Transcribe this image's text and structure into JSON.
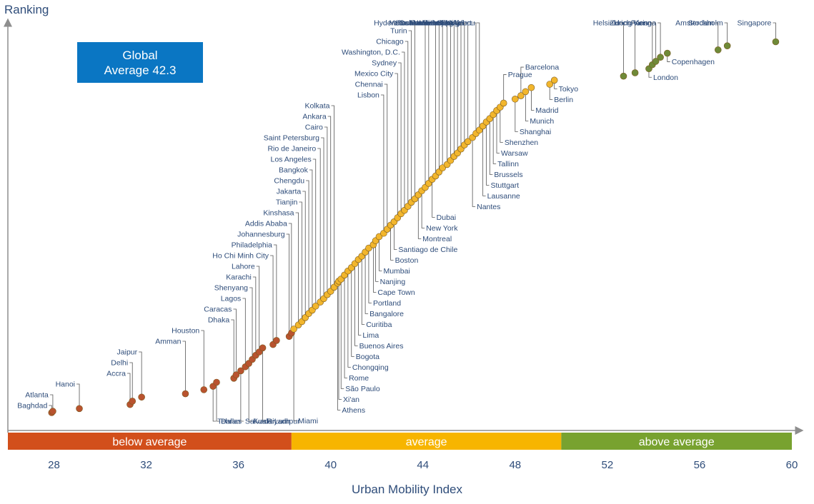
{
  "chart_data": {
    "type": "scatter",
    "title": "",
    "xlabel": "Urban Mobility Index",
    "ylabel": "Ranking",
    "xlim": [
      26,
      60
    ],
    "xticks": [
      28,
      32,
      36,
      40,
      44,
      48,
      52,
      56,
      60
    ],
    "annotation": {
      "line1": "Global",
      "line2": "Average 42.3"
    },
    "bands": [
      {
        "label": "below average",
        "from": 26,
        "to": 38.3,
        "color": "#d24f1b"
      },
      {
        "label": "average",
        "from": 38.3,
        "to": 50,
        "color": "#f7b500"
      },
      {
        "label": "above average",
        "from": 50,
        "to": 60,
        "color": "#78a22f"
      }
    ],
    "group_colors": {
      "below": "#b9532f",
      "average": "#f2b62d",
      "above": "#6f8a38"
    },
    "points": [
      {
        "city": "Baghdad",
        "x": 27.9,
        "y": 578,
        "group": "below"
      },
      {
        "city": "Atlanta",
        "x": 27.95,
        "y": 576,
        "group": "below"
      },
      {
        "city": "Hanoi",
        "x": 29.1,
        "y": 572,
        "group": "below"
      },
      {
        "city": "Accra",
        "x": 31.3,
        "y": 566,
        "group": "below"
      },
      {
        "city": "Delhi",
        "x": 31.4,
        "y": 561,
        "group": "below"
      },
      {
        "city": "Jaipur",
        "x": 31.8,
        "y": 555,
        "group": "below"
      },
      {
        "city": "Amman",
        "x": 33.7,
        "y": 550,
        "group": "below"
      },
      {
        "city": "Houston",
        "x": 34.5,
        "y": 544,
        "group": "below"
      },
      {
        "city": "Tehran",
        "x": 34.9,
        "y": 539,
        "group": "below"
      },
      {
        "city": "Dallas",
        "x": 35.05,
        "y": 533,
        "group": "below"
      },
      {
        "city": "Dhaka",
        "x": 35.8,
        "y": 527,
        "group": "below"
      },
      {
        "city": "Caracas",
        "x": 35.9,
        "y": 522,
        "group": "below"
      },
      {
        "city": "Salvador",
        "x": 36.1,
        "y": 516,
        "group": "below"
      },
      {
        "city": "Lagos",
        "x": 36.3,
        "y": 510,
        "group": "below"
      },
      {
        "city": "Kuala Lumpur",
        "x": 36.45,
        "y": 505,
        "group": "below"
      },
      {
        "city": "Shenyang",
        "x": 36.6,
        "y": 499,
        "group": "below"
      },
      {
        "city": "Karachi",
        "x": 36.75,
        "y": 493,
        "group": "below"
      },
      {
        "city": "Lahore",
        "x": 36.9,
        "y": 488,
        "group": "below"
      },
      {
        "city": "Riyadh",
        "x": 37.05,
        "y": 482,
        "group": "below"
      },
      {
        "city": "Ho Chi Minh City",
        "x": 37.5,
        "y": 477,
        "group": "below"
      },
      {
        "city": "Philadelphia",
        "x": 37.65,
        "y": 471,
        "group": "below"
      },
      {
        "city": "Johannesburg",
        "x": 38.2,
        "y": 465,
        "group": "below"
      },
      {
        "city": "Addis Ababa",
        "x": 38.3,
        "y": 460,
        "group": "below"
      },
      {
        "city": "Miami",
        "x": 38.4,
        "y": 454,
        "group": "average"
      },
      {
        "city": "Kinshasa",
        "x": 38.6,
        "y": 448,
        "group": "average"
      },
      {
        "city": "Tianjin",
        "x": 38.75,
        "y": 443,
        "group": "average"
      },
      {
        "city": "Jakarta",
        "x": 38.9,
        "y": 437,
        "group": "average"
      },
      {
        "city": "Chengdu",
        "x": 39.05,
        "y": 431,
        "group": "average"
      },
      {
        "city": "Bangkok",
        "x": 39.2,
        "y": 426,
        "group": "average"
      },
      {
        "city": "Los Angeles",
        "x": 39.35,
        "y": 420,
        "group": "average"
      },
      {
        "city": "Rio de Janeiro",
        "x": 39.55,
        "y": 414,
        "group": "average"
      },
      {
        "city": "Saint Petersburg",
        "x": 39.7,
        "y": 409,
        "group": "average"
      },
      {
        "city": "Cairo",
        "x": 39.85,
        "y": 403,
        "group": "average"
      },
      {
        "city": "Ankara",
        "x": 40.0,
        "y": 398,
        "group": "average"
      },
      {
        "city": "Kolkata",
        "x": 40.15,
        "y": 392,
        "group": "average"
      },
      {
        "city": "Athens",
        "x": 40.3,
        "y": 386,
        "group": "average"
      },
      {
        "city": "Xi'an",
        "x": 40.35,
        "y": 383,
        "group": "average"
      },
      {
        "city": "São Paulo",
        "x": 40.45,
        "y": 380,
        "group": "average"
      },
      {
        "city": "Rome",
        "x": 40.6,
        "y": 374,
        "group": "average"
      },
      {
        "city": "Chongqing",
        "x": 40.75,
        "y": 368,
        "group": "average"
      },
      {
        "city": "Bogota",
        "x": 40.9,
        "y": 363,
        "group": "average"
      },
      {
        "city": "Buenos Aires",
        "x": 41.05,
        "y": 357,
        "group": "average"
      },
      {
        "city": "Lima",
        "x": 41.2,
        "y": 351,
        "group": "average"
      },
      {
        "city": "Curitiba",
        "x": 41.35,
        "y": 346,
        "group": "average"
      },
      {
        "city": "Bangalore",
        "x": 41.5,
        "y": 340,
        "group": "average"
      },
      {
        "city": "Portland",
        "x": 41.65,
        "y": 334,
        "group": "average"
      },
      {
        "city": "Cape Town",
        "x": 41.85,
        "y": 329,
        "group": "average"
      },
      {
        "city": "Nanjing",
        "x": 41.95,
        "y": 323,
        "group": "average"
      },
      {
        "city": "Mumbai",
        "x": 42.1,
        "y": 317,
        "group": "average"
      },
      {
        "city": "Lisbon",
        "x": 42.3,
        "y": 312,
        "group": "average"
      },
      {
        "city": "Chennai",
        "x": 42.45,
        "y": 306,
        "group": "average"
      },
      {
        "city": "Boston",
        "x": 42.6,
        "y": 300,
        "group": "average"
      },
      {
        "city": "Santiago de Chile",
        "x": 42.75,
        "y": 295,
        "group": "average"
      },
      {
        "city": "Mexico City",
        "x": 42.9,
        "y": 289,
        "group": "average"
      },
      {
        "city": "Sydney",
        "x": 43.05,
        "y": 283,
        "group": "average"
      },
      {
        "city": "Washington, D.C.",
        "x": 43.2,
        "y": 278,
        "group": "average"
      },
      {
        "city": "Chicago",
        "x": 43.35,
        "y": 272,
        "group": "average"
      },
      {
        "city": "Turin",
        "x": 43.5,
        "y": 266,
        "group": "average"
      },
      {
        "city": "Hyderabad",
        "x": 43.65,
        "y": 261,
        "group": "average"
      },
      {
        "city": "Montreal",
        "x": 43.8,
        "y": 255,
        "group": "average"
      },
      {
        "city": "New York",
        "x": 43.95,
        "y": 249,
        "group": "average"
      },
      {
        "city": "Osaka",
        "x": 44.1,
        "y": 244,
        "group": "average"
      },
      {
        "city": "Melbourne",
        "x": 44.25,
        "y": 238,
        "group": "average"
      },
      {
        "city": "Dubai",
        "x": 44.4,
        "y": 232,
        "group": "average"
      },
      {
        "city": "Manila",
        "x": 44.55,
        "y": 227,
        "group": "average"
      },
      {
        "city": "Wuhan",
        "x": 44.7,
        "y": 221,
        "group": "average"
      },
      {
        "city": "Hanover",
        "x": 44.85,
        "y": 215,
        "group": "average"
      },
      {
        "city": "Istanbul",
        "x": 45.05,
        "y": 210,
        "group": "average"
      },
      {
        "city": "Moscow",
        "x": 45.2,
        "y": 204,
        "group": "average"
      },
      {
        "city": "Toronto",
        "x": 45.35,
        "y": 198,
        "group": "average"
      },
      {
        "city": "Beijing",
        "x": 45.5,
        "y": 193,
        "group": "average"
      },
      {
        "city": "Seoul",
        "x": 45.65,
        "y": 187,
        "group": "average"
      },
      {
        "city": "San Francisco (CA)",
        "x": 45.8,
        "y": 181,
        "group": "average"
      },
      {
        "city": "Milan",
        "x": 45.95,
        "y": 176,
        "group": "average"
      },
      {
        "city": "Nantes",
        "x": 46.15,
        "y": 170,
        "group": "average"
      },
      {
        "city": "Frankfurt",
        "x": 46.3,
        "y": 164,
        "group": "average"
      },
      {
        "city": "Guangzhou",
        "x": 46.45,
        "y": 159,
        "group": "average"
      },
      {
        "city": "Lausanne",
        "x": 46.6,
        "y": 153,
        "group": "average"
      },
      {
        "city": "Stuttgart",
        "x": 46.75,
        "y": 147,
        "group": "average"
      },
      {
        "city": "Brussels",
        "x": 46.9,
        "y": 142,
        "group": "average"
      },
      {
        "city": "Tallinn",
        "x": 47.05,
        "y": 136,
        "group": "average"
      },
      {
        "city": "Warsaw",
        "x": 47.2,
        "y": 130,
        "group": "average"
      },
      {
        "city": "Shenzhen",
        "x": 47.35,
        "y": 125,
        "group": "average"
      },
      {
        "city": "Prague",
        "x": 47.5,
        "y": 119,
        "group": "average"
      },
      {
        "city": "Shanghai",
        "x": 48.0,
        "y": 113,
        "group": "average"
      },
      {
        "city": "Barcelona",
        "x": 48.25,
        "y": 108,
        "group": "average"
      },
      {
        "city": "Munich",
        "x": 48.45,
        "y": 102,
        "group": "average"
      },
      {
        "city": "Madrid",
        "x": 48.7,
        "y": 96,
        "group": "average"
      },
      {
        "city": "Berlin",
        "x": 49.5,
        "y": 91,
        "group": "average"
      },
      {
        "city": "Tokyo",
        "x": 49.7,
        "y": 85,
        "group": "average"
      },
      {
        "city": "Helsinki",
        "x": 52.7,
        "y": 79,
        "group": "above"
      },
      {
        "city": "Zurich",
        "x": 53.2,
        "y": 74,
        "group": "above"
      },
      {
        "city": "London",
        "x": 53.8,
        "y": 68,
        "group": "above"
      },
      {
        "city": "Paris",
        "x": 53.95,
        "y": 62,
        "group": "above"
      },
      {
        "city": "Hong Kong",
        "x": 54.1,
        "y": 57,
        "group": "above"
      },
      {
        "city": "Vienna",
        "x": 54.3,
        "y": 51,
        "group": "above"
      },
      {
        "city": "Copenhagen",
        "x": 54.6,
        "y": 45,
        "group": "above"
      },
      {
        "city": "Amsterdam",
        "x": 56.8,
        "y": 40,
        "group": "above"
      },
      {
        "city": "Stockholm",
        "x": 57.2,
        "y": 34,
        "group": "above"
      },
      {
        "city": "Singapore",
        "x": 59.3,
        "y": 28,
        "group": "above"
      }
    ]
  }
}
